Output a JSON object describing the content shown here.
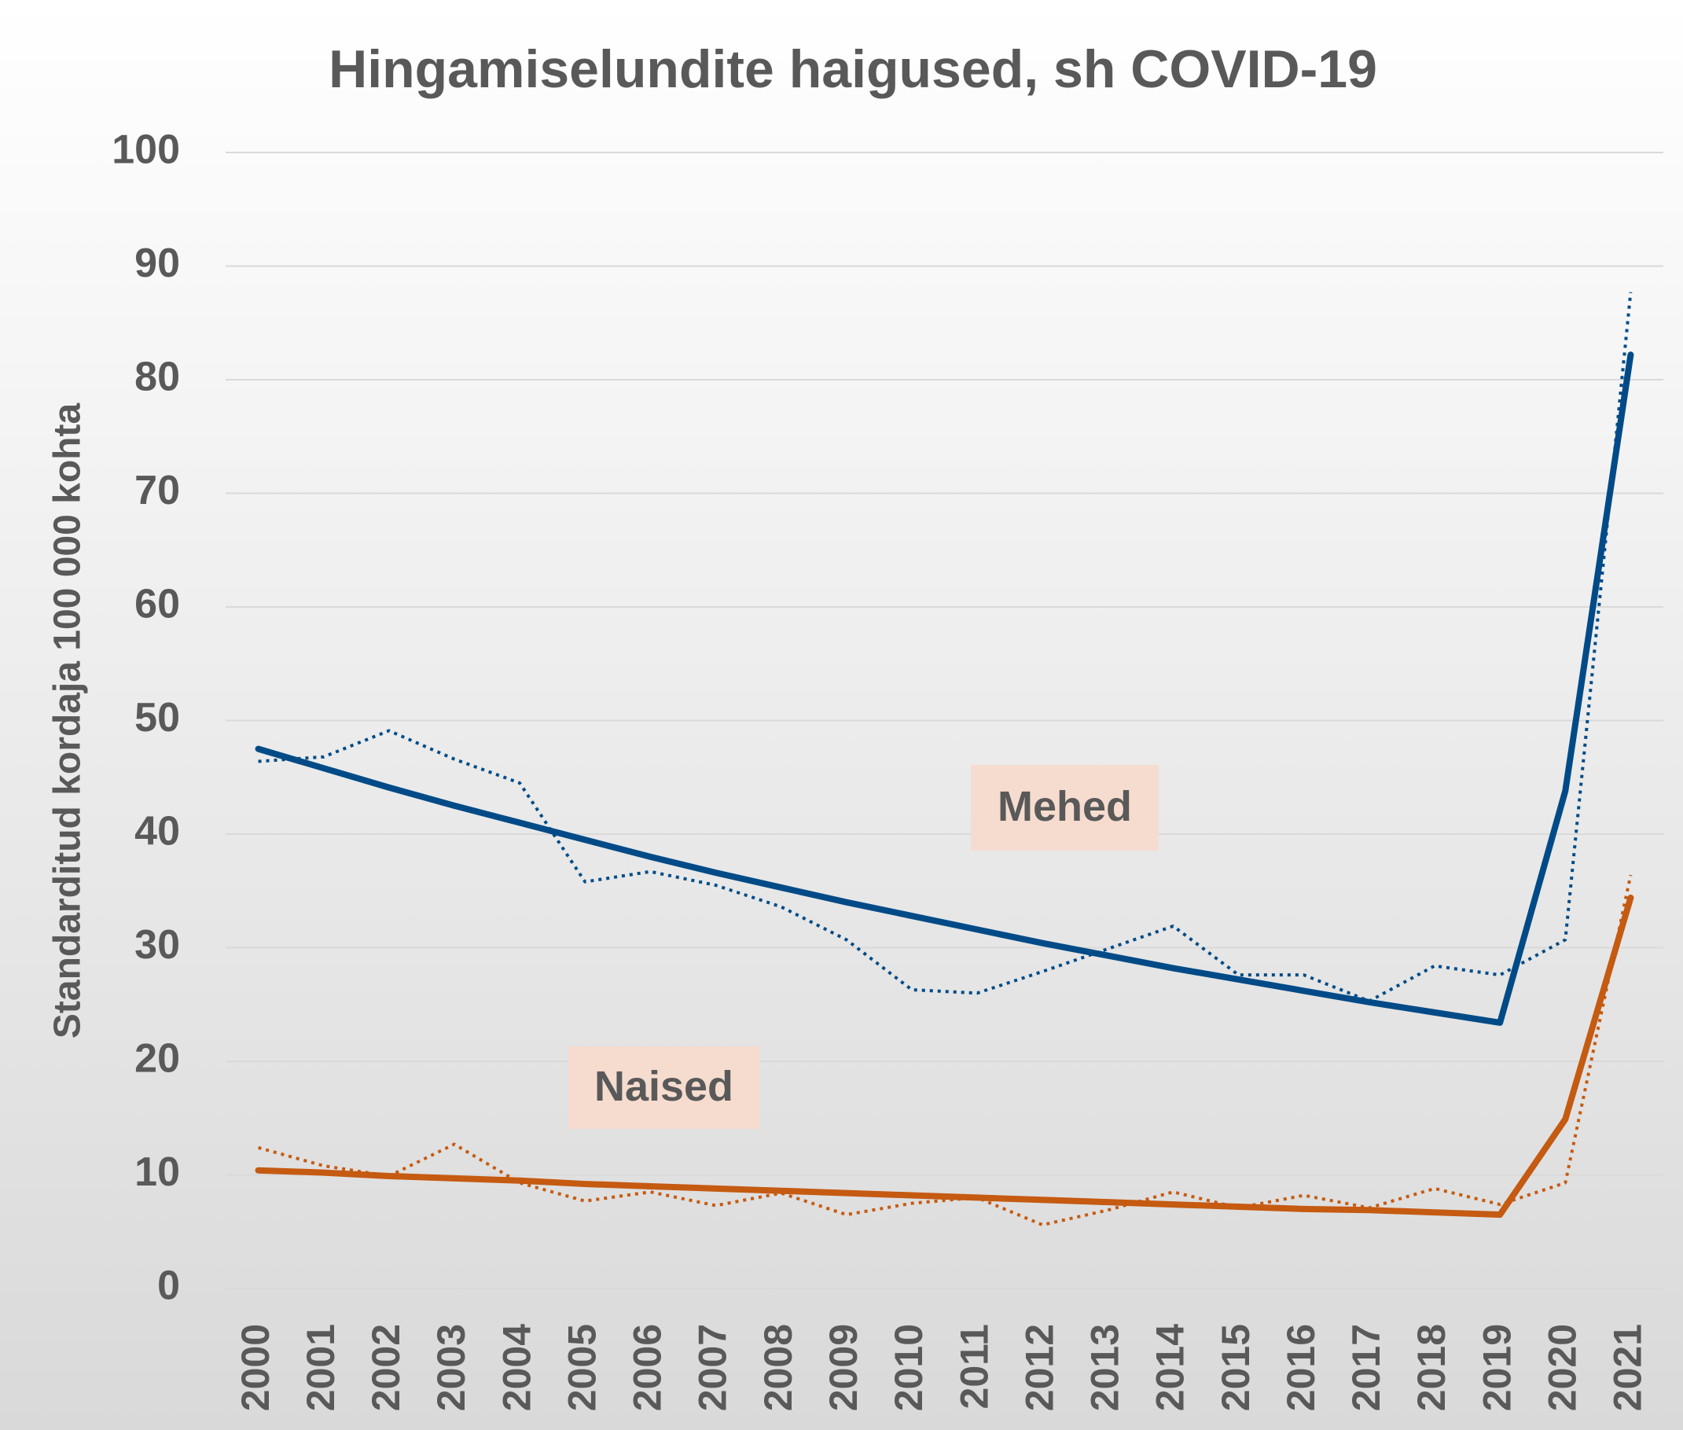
{
  "chart_data": {
    "type": "line",
    "title": "Hingamiselundite haigused, sh COVID-19",
    "y_label": "Standarditud kordaja 100 000 kohta",
    "categories": [
      "2000",
      "2001",
      "2002",
      "2003",
      "2004",
      "2005",
      "2006",
      "2007",
      "2008",
      "2009",
      "2010",
      "2011",
      "2012",
      "2013",
      "2014",
      "2015",
      "2016",
      "2017",
      "2018",
      "2019",
      "2020",
      "2021"
    ],
    "series": [
      {
        "color": "#004b87",
        "style": "dotted",
        "values": [
          46.4,
          46.8,
          49.1,
          46.6,
          44.5,
          35.8,
          36.7,
          35.5,
          33.6,
          30.7,
          26.3,
          26.0,
          27.9,
          29.9,
          31.9,
          27.6,
          27.6,
          25.3,
          28.4,
          27.6,
          30.7,
          87.7
        ]
      },
      {
        "color": "#004b87",
        "style": "solid",
        "values": [
          47.5,
          45.8,
          44.1,
          42.5,
          41.0,
          39.5,
          38.0,
          36.6,
          35.3,
          34.0,
          32.8,
          31.6,
          30.4,
          29.3,
          28.2,
          27.2,
          26.2,
          25.2,
          24.3,
          23.4,
          43.8,
          82.2
        ]
      },
      {
        "color": "#c55a11",
        "style": "dotted",
        "values": [
          12.4,
          10.8,
          9.9,
          12.7,
          9.3,
          7.7,
          8.5,
          7.3,
          8.4,
          6.5,
          7.5,
          8.0,
          5.6,
          6.9,
          8.5,
          7.1,
          8.2,
          7.1,
          8.8,
          7.4,
          9.3,
          36.4
        ]
      },
      {
        "color": "#c55a11",
        "style": "solid",
        "values": [
          10.4,
          10.2,
          9.9,
          9.7,
          9.5,
          9.2,
          9.0,
          8.8,
          8.6,
          8.4,
          8.2,
          8.0,
          7.8,
          7.6,
          7.4,
          7.2,
          7.0,
          6.9,
          6.7,
          6.5,
          14.9,
          34.4
        ]
      }
    ],
    "annotations": [
      {
        "text": "Mehed"
      },
      {
        "text": "Naised"
      }
    ],
    "ylim": [
      0,
      100
    ],
    "yticks": [
      0,
      10,
      20,
      30,
      40,
      50,
      60,
      70,
      80,
      90,
      100
    ],
    "grid": true
  }
}
